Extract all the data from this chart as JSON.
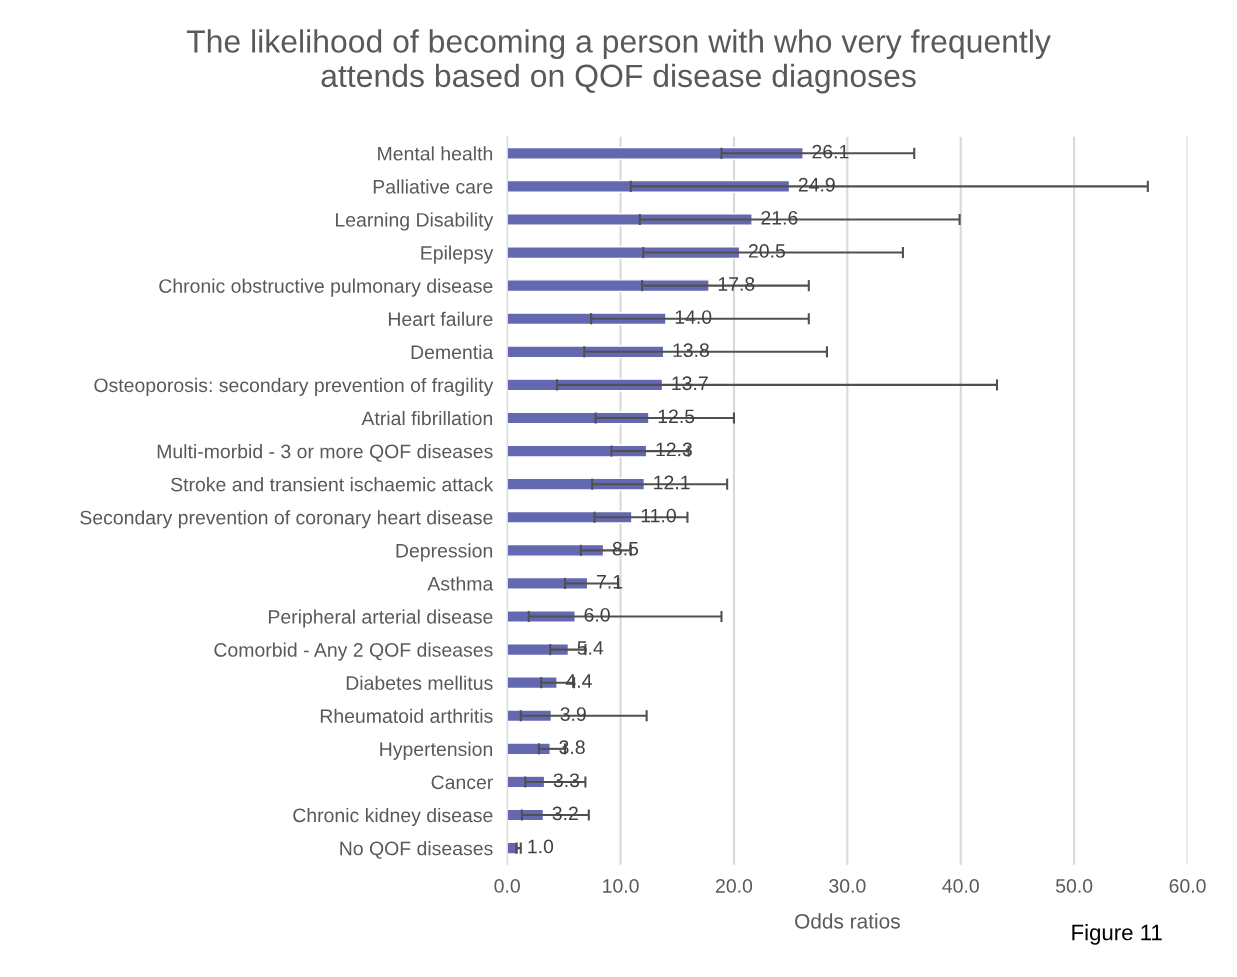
{
  "chart_data": {
    "type": "bar",
    "orientation": "horizontal",
    "title": "The likelihood of becoming a person with who very frequently\nattends based on QOF disease diagnoses",
    "xlabel": "Odds ratios",
    "categories": [
      "Mental health",
      "Palliative care",
      "Learning Disability",
      "Epilepsy",
      "Chronic obstructive pulmonary disease",
      "Heart failure",
      "Dementia",
      "Osteoporosis: secondary prevention of fragility",
      "Atrial fibrillation",
      "Multi-morbid - 3 or more QOF diseases",
      "Stroke and transient ischaemic attack",
      "Secondary prevention of coronary heart disease",
      "Depression",
      "Asthma",
      "Peripheral arterial disease",
      "Comorbid - Any 2 QOF diseases",
      "Diabetes mellitus",
      "Rheumatoid arthritis",
      "Hypertension",
      "Cancer",
      "Chronic kidney disease",
      "No QOF diseases"
    ],
    "values": [
      26.1,
      24.9,
      21.6,
      20.5,
      17.8,
      14.0,
      13.8,
      13.7,
      12.5,
      12.3,
      12.1,
      11.0,
      8.5,
      7.1,
      6.0,
      5.4,
      4.4,
      3.9,
      3.8,
      3.3,
      3.2,
      1.0
    ],
    "value_labels": [
      "26.1",
      "24.9",
      "21.6",
      "20.5",
      "17.8",
      "14.0",
      "13.8",
      "13.7",
      "12.5",
      "12.3",
      "12.1",
      "11.0",
      "8.5",
      "7.1",
      "6.0",
      "5.4",
      "4.4",
      "3.9",
      "3.8",
      "3.3",
      "3.2",
      "1.0"
    ],
    "errors": [
      [
        18.9,
        35.9
      ],
      [
        10.9,
        56.5
      ],
      [
        11.7,
        39.9
      ],
      [
        12.0,
        34.9
      ],
      [
        11.9,
        26.6
      ],
      [
        7.4,
        26.6
      ],
      [
        6.8,
        28.2
      ],
      [
        4.4,
        43.2
      ],
      [
        7.8,
        20.0
      ],
      [
        9.2,
        16.0
      ],
      [
        7.5,
        19.4
      ],
      [
        7.7,
        15.9
      ],
      [
        6.5,
        10.9
      ],
      [
        5.1,
        9.8
      ],
      [
        1.9,
        18.9
      ],
      [
        3.8,
        6.9
      ],
      [
        3.0,
        5.9
      ],
      [
        1.2,
        12.3
      ],
      [
        2.8,
        5.1
      ],
      [
        1.6,
        6.9
      ],
      [
        1.3,
        7.2
      ],
      [
        0.8,
        1.2
      ]
    ],
    "color": "#6468b0",
    "xlim": [
      0,
      60
    ],
    "xticks": [
      {
        "value": 0,
        "label": "0.0"
      },
      {
        "value": 10,
        "label": "10.0"
      },
      {
        "value": 20,
        "label": "20.0"
      },
      {
        "value": 30,
        "label": "30.0"
      },
      {
        "value": 40,
        "label": "40.0"
      },
      {
        "value": 50,
        "label": "50.0"
      },
      {
        "value": 60,
        "label": "60.0"
      }
    ],
    "grid": "x",
    "annotations": [
      "Figure 11"
    ]
  }
}
